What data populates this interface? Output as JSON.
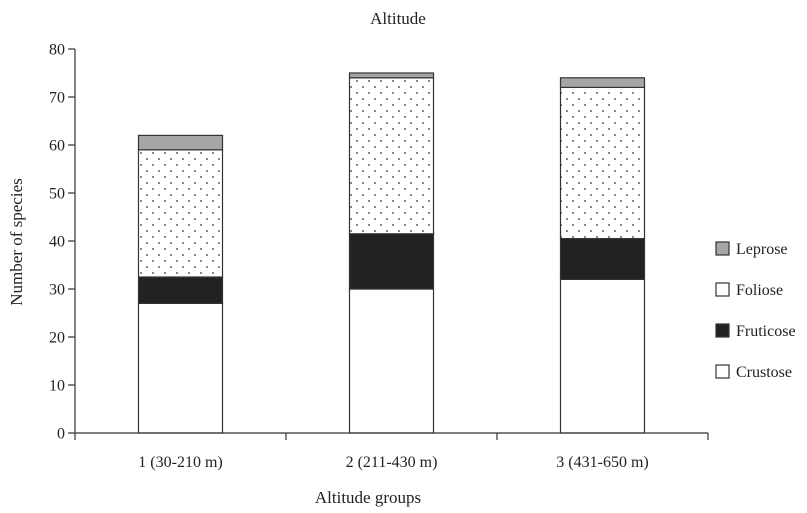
{
  "chart_data": {
    "type": "bar",
    "stacked": true,
    "title": "Altitude",
    "xlabel": "Altitude groups",
    "ylabel": "Number of species",
    "ylim": [
      0,
      80
    ],
    "yticks": [
      0,
      10,
      20,
      30,
      40,
      50,
      60,
      70,
      80
    ],
    "categories": [
      "1 (30-210 m)",
      "2 (211-430 m)",
      "3 (431-650 m)"
    ],
    "series": [
      {
        "name": "Crustose",
        "values": [
          27,
          30,
          32
        ],
        "fill": "#ffffff"
      },
      {
        "name": "Fruticose",
        "values": [
          5.5,
          11.5,
          8.5
        ],
        "fill": "#222222"
      },
      {
        "name": "Foliose",
        "values": [
          26.5,
          32.5,
          31.5
        ],
        "fill": "dotted"
      },
      {
        "name": "Leprose",
        "values": [
          3,
          1,
          2
        ],
        "fill": "#a6a6a6"
      }
    ],
    "legend": {
      "placement": "right",
      "order": [
        "Leprose",
        "Foliose",
        "Fruticose",
        "Crustose"
      ],
      "swatch_colors": {
        "Leprose": "#a6a6a6",
        "Foliose": "#ffffff",
        "Fruticose": "#222222",
        "Crustose": "#ffffff"
      }
    },
    "grid": false
  }
}
